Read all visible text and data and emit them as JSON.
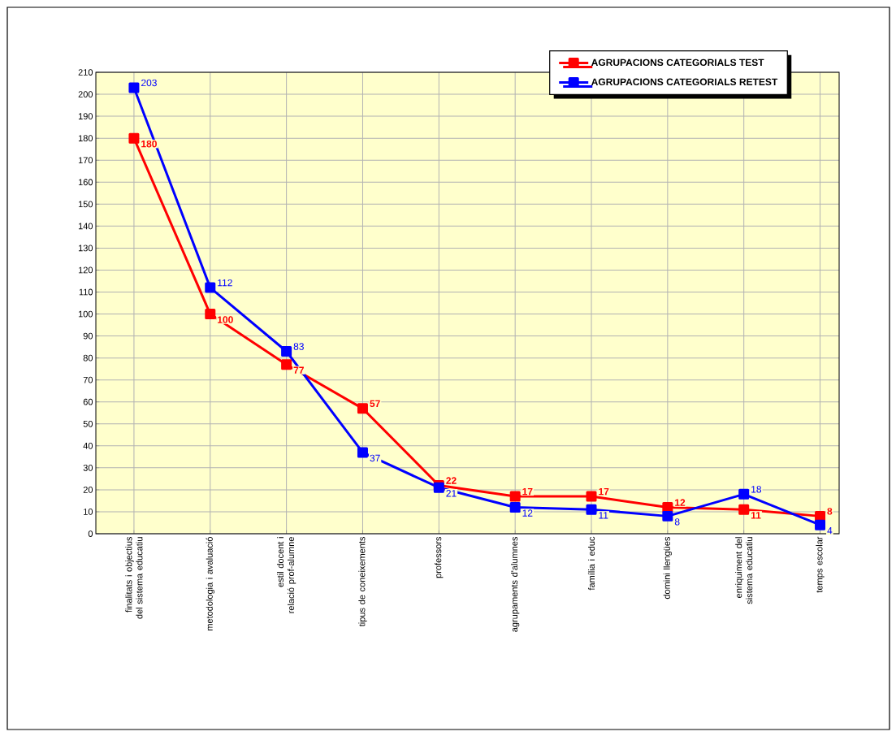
{
  "chart_data": {
    "type": "line",
    "categories": [
      "finalitats i objectius del sistema educatiu",
      "metodologia i avaluació",
      "estil docent i relació prof-alumne",
      "tipus de coneixements",
      "professors",
      "agrupaments d'alumnes",
      "família i educ",
      "domini llengües",
      "enriquiment del sistema educatiu",
      "temps escolar"
    ],
    "series": [
      {
        "name": "AGRUPACIONS CATEGORIALS TEST",
        "color": "#ff0000",
        "values": [
          180,
          100,
          77,
          57,
          22,
          17,
          17,
          12,
          11,
          8
        ]
      },
      {
        "name": "AGRUPACIONS CATEGORIALS RETEST",
        "color": "#0000ff",
        "values": [
          203,
          112,
          83,
          37,
          21,
          12,
          11,
          8,
          18,
          4
        ]
      }
    ],
    "ylim": [
      0,
      210
    ],
    "yticks": [
      0,
      10,
      20,
      30,
      40,
      50,
      60,
      70,
      80,
      90,
      100,
      110,
      120,
      130,
      140,
      150,
      160,
      170,
      180,
      190,
      200,
      210
    ],
    "grid": true,
    "legend": "top right",
    "marker": "square",
    "line_style": "solid",
    "data_labels": true
  }
}
